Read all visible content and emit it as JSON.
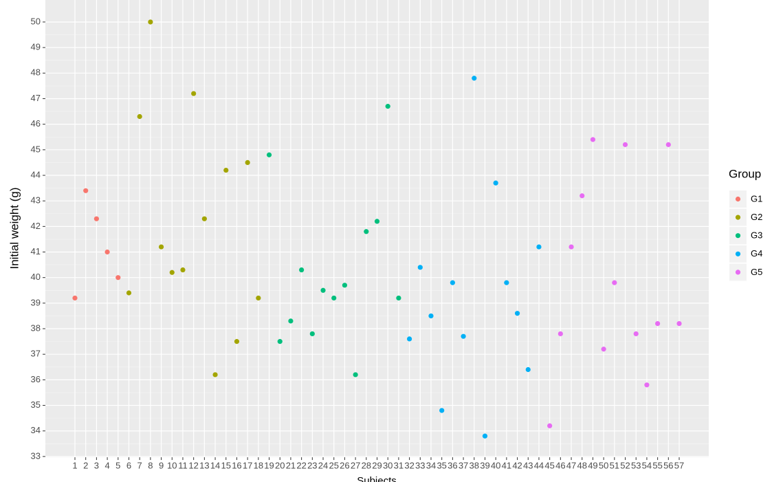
{
  "chart_data": {
    "type": "scatter",
    "x_label": "Subjects",
    "y_label": "Initial weight (g)",
    "legend_title": "Group",
    "categories": [
      "1",
      "2",
      "3",
      "4",
      "5",
      "6",
      "7",
      "8",
      "9",
      "10",
      "11",
      "12",
      "13",
      "14",
      "15",
      "16",
      "17",
      "18",
      "19",
      "20",
      "21",
      "22",
      "23",
      "24",
      "25",
      "26",
      "27",
      "28",
      "29",
      "30",
      "31",
      "32",
      "33",
      "34",
      "35",
      "36",
      "37",
      "38",
      "39",
      "40",
      "41",
      "42",
      "43",
      "44",
      "45",
      "46",
      "47",
      "48",
      "49",
      "50",
      "51",
      "52",
      "53",
      "54",
      "55",
      "56",
      "57"
    ],
    "series": [
      {
        "name": "G1",
        "color": "#F8766D",
        "values": [
          39.2,
          43.4,
          42.3,
          41.0,
          40.0,
          null,
          null,
          null,
          null,
          null,
          null,
          null,
          null,
          null,
          null,
          null,
          null,
          null,
          null,
          null,
          null,
          null,
          null,
          null,
          null,
          null,
          null,
          null,
          null,
          null,
          null,
          null,
          null,
          null,
          null,
          null,
          null,
          null,
          null,
          null,
          null,
          null,
          null,
          null,
          null,
          null,
          null,
          null,
          null,
          null,
          null,
          null,
          null,
          null,
          null,
          null,
          null
        ]
      },
      {
        "name": "G2",
        "color": "#A3A500",
        "values": [
          null,
          null,
          null,
          null,
          null,
          39.4,
          46.3,
          50.0,
          41.2,
          40.2,
          40.3,
          47.2,
          42.3,
          36.2,
          44.2,
          37.5,
          44.5,
          39.2,
          null,
          null,
          null,
          null,
          null,
          null,
          null,
          null,
          null,
          null,
          null,
          null,
          null,
          null,
          null,
          null,
          null,
          null,
          null,
          null,
          null,
          null,
          null,
          null,
          null,
          null,
          null,
          null,
          null,
          null,
          null,
          null,
          null,
          null,
          null,
          null,
          null,
          null,
          null
        ]
      },
      {
        "name": "G3",
        "color": "#00BF7D",
        "values": [
          null,
          null,
          null,
          null,
          null,
          null,
          null,
          null,
          null,
          null,
          null,
          null,
          null,
          null,
          null,
          null,
          null,
          null,
          44.8,
          37.5,
          38.3,
          40.3,
          37.8,
          39.5,
          39.2,
          39.7,
          36.2,
          41.8,
          42.2,
          46.7,
          39.2,
          null,
          null,
          null,
          null,
          null,
          null,
          null,
          null,
          null,
          null,
          null,
          null,
          null,
          null,
          null,
          null,
          null,
          null,
          null,
          null,
          null,
          null,
          null,
          null,
          null,
          null
        ]
      },
      {
        "name": "G4",
        "color": "#00B0F6",
        "values": [
          null,
          null,
          null,
          null,
          null,
          null,
          null,
          null,
          null,
          null,
          null,
          null,
          null,
          null,
          null,
          null,
          null,
          null,
          null,
          null,
          null,
          null,
          null,
          null,
          null,
          null,
          null,
          null,
          null,
          null,
          null,
          37.6,
          40.4,
          38.5,
          34.8,
          39.8,
          37.7,
          47.8,
          33.8,
          43.7,
          39.8,
          38.6,
          36.4,
          41.2,
          null,
          null,
          null,
          null,
          null,
          null,
          null,
          null,
          null,
          null,
          null,
          null,
          null
        ]
      },
      {
        "name": "G5",
        "color": "#E76BF3",
        "values": [
          null,
          null,
          null,
          null,
          null,
          null,
          null,
          null,
          null,
          null,
          null,
          null,
          null,
          null,
          null,
          null,
          null,
          null,
          null,
          null,
          null,
          null,
          null,
          null,
          null,
          null,
          null,
          null,
          null,
          null,
          null,
          null,
          null,
          null,
          null,
          null,
          null,
          null,
          null,
          null,
          null,
          null,
          null,
          null,
          34.2,
          37.8,
          41.2,
          43.2,
          45.4,
          37.2,
          39.8,
          45.2,
          37.8,
          35.8,
          38.2,
          45.2,
          38.2
        ]
      }
    ],
    "ylim": [
      32.97,
      50.86
    ],
    "yticks": [
      33,
      34,
      35,
      36,
      37,
      38,
      39,
      40,
      41,
      42,
      43,
      44,
      45,
      46,
      47,
      48,
      49,
      50
    ],
    "grid": true
  }
}
